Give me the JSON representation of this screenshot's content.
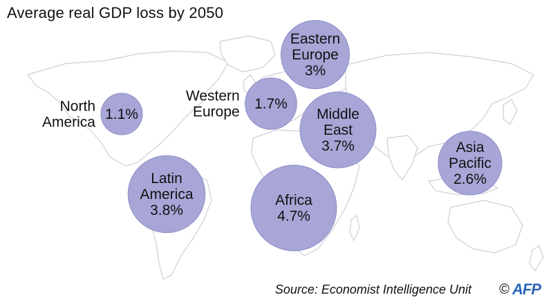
{
  "title": "Average real GDP loss by 2050",
  "chart_data": {
    "type": "bubble-map",
    "title": "Average real GDP loss by 2050",
    "unit": "%",
    "regions": [
      {
        "name": "North America",
        "lines": [
          "North",
          "America"
        ],
        "value": 1.1,
        "label": "1.1%",
        "label_placement": "left"
      },
      {
        "name": "Western Europe",
        "lines": [
          "Western",
          "Europe"
        ],
        "value": 1.7,
        "label": "1.7%",
        "label_placement": "left"
      },
      {
        "name": "Eastern Europe",
        "lines": [
          "Eastern",
          "Europe"
        ],
        "value": 3,
        "label": "3%",
        "label_placement": "inside"
      },
      {
        "name": "Middle East",
        "lines": [
          "Middle",
          "East"
        ],
        "value": 3.7,
        "label": "3.7%",
        "label_placement": "inside"
      },
      {
        "name": "Asia Pacific",
        "lines": [
          "Asia",
          "Pacific"
        ],
        "value": 2.6,
        "label": "2.6%",
        "label_placement": "inside"
      },
      {
        "name": "Latin America",
        "lines": [
          "Latin",
          "America"
        ],
        "value": 3.8,
        "label": "3.8%",
        "label_placement": "inside"
      },
      {
        "name": "Africa",
        "lines": [
          "Africa"
        ],
        "value": 4.7,
        "label": "4.7%",
        "label_placement": "inside"
      }
    ],
    "colors": {
      "bubble": "#a7a6d7",
      "bubble_stroke": "#8e8dc7",
      "land_outline": "#cfcfd6"
    }
  },
  "footer": {
    "source": "Source: Economist Intelligence Unit",
    "copyright_symbol": "©",
    "credit_logo": "AFP"
  }
}
